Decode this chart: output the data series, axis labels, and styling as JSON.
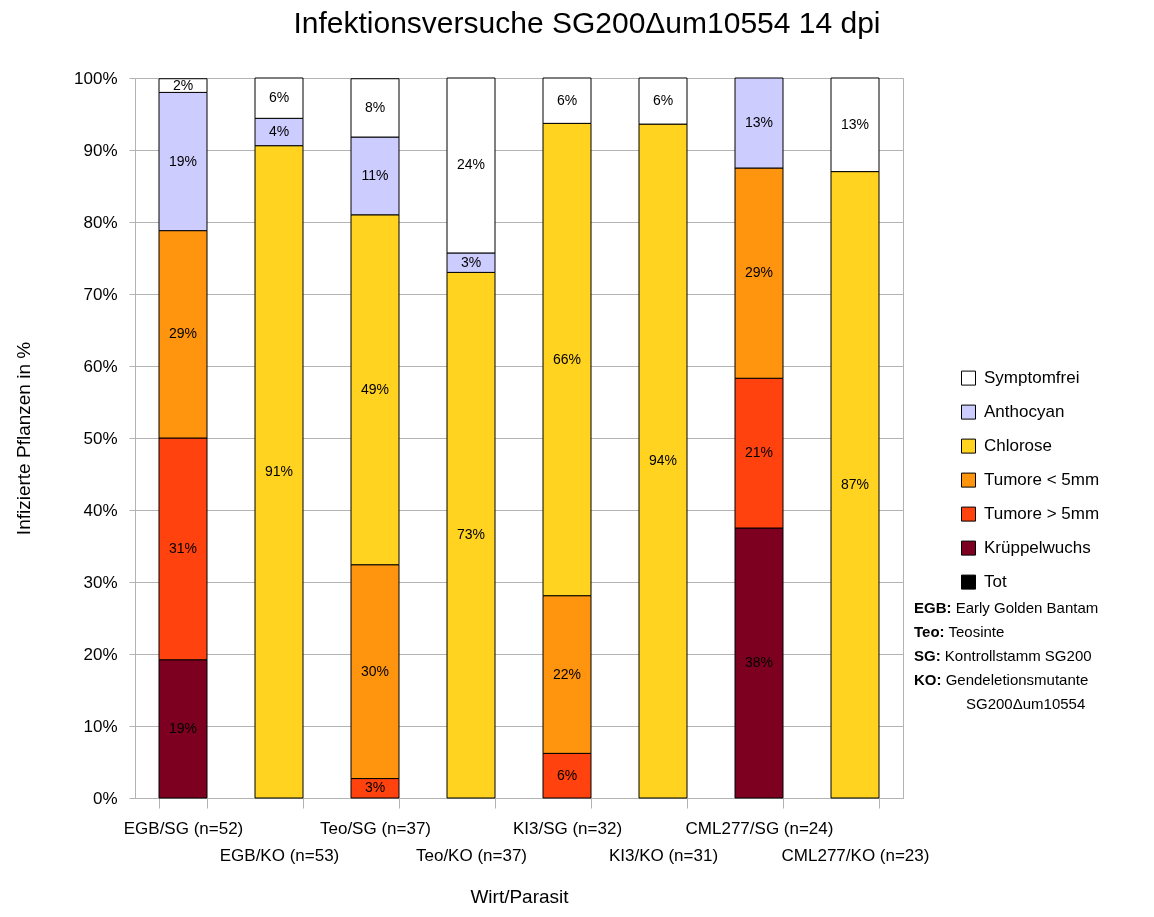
{
  "chart_data": {
    "type": "bar",
    "title": "Infektionsversuche SG200Δum10554 14 dpi",
    "xlabel": "Wirt/Parasit",
    "ylabel": "Infizierte Pflanzen in %",
    "categories": [
      "EGB/SG (n=52)",
      "EGB/KO (n=53)",
      "Teo/SG (n=37)",
      "Teo/KO (n=37)",
      "KI3/SG (n=32)",
      "KI3/KO (n=31)",
      "CML277/SG (n=24)",
      "CML277/KO (n=23)"
    ],
    "stacked": true,
    "ylim": [
      0,
      100
    ],
    "yticks": [
      {
        "value": 0,
        "label": "0%"
      },
      {
        "value": 10,
        "label": "10%"
      },
      {
        "value": 20,
        "label": "20%"
      },
      {
        "value": 30,
        "label": "30%"
      },
      {
        "value": 40,
        "label": "40%"
      },
      {
        "value": 50,
        "label": "50%"
      },
      {
        "value": 60,
        "label": "60%"
      },
      {
        "value": 70,
        "label": "70%"
      },
      {
        "value": 80,
        "label": "80%"
      },
      {
        "value": 90,
        "label": "90%"
      },
      {
        "value": 100,
        "label": "100%"
      }
    ],
    "grid": "y",
    "legend": "right",
    "series": [
      {
        "name": "Tot",
        "color": "#000000",
        "values": [
          null,
          null,
          null,
          null,
          null,
          null,
          null,
          null
        ]
      },
      {
        "name": "Krüppelwuchs",
        "color": "#7e0021",
        "values": [
          19.2,
          null,
          null,
          null,
          null,
          null,
          37.5,
          null
        ],
        "value_labels": [
          "19%",
          null,
          null,
          null,
          null,
          null,
          "38%",
          null
        ]
      },
      {
        "name": "Tumore > 5mm",
        "color": "#ff420e",
        "values": [
          30.8,
          null,
          2.7,
          null,
          6.2,
          null,
          20.8,
          null
        ],
        "value_labels": [
          "31%",
          null,
          "3%",
          null,
          "6%",
          null,
          "21%",
          null
        ]
      },
      {
        "name": "Tumore < 5mm",
        "color": "#ff950e",
        "values": [
          28.8,
          null,
          29.7,
          null,
          21.9,
          null,
          29.2,
          null
        ],
        "value_labels": [
          "29%",
          null,
          "30%",
          null,
          "22%",
          null,
          "29%",
          null
        ]
      },
      {
        "name": "Chlorose",
        "color": "#ffd320",
        "values": [
          null,
          90.6,
          48.6,
          73.0,
          65.6,
          93.6,
          null,
          87.0
        ],
        "value_labels": [
          null,
          "91%",
          "49%",
          "73%",
          "66%",
          "94%",
          null,
          "87%"
        ]
      },
      {
        "name": "Anthocyan",
        "color": "#ccccff",
        "values": [
          19.2,
          3.8,
          10.8,
          2.7,
          null,
          null,
          12.5,
          null
        ],
        "value_labels": [
          "19%",
          "4%",
          "11%",
          "3%",
          null,
          null,
          "13%",
          null
        ]
      },
      {
        "name": "Symptomfrei",
        "color": "#ffffff",
        "values": [
          1.9,
          5.6,
          8.1,
          24.3,
          6.3,
          6.4,
          null,
          13.0
        ],
        "value_labels": [
          "2%",
          "6%",
          "8%",
          "24%",
          "6%",
          "6%",
          null,
          "13%"
        ]
      }
    ],
    "annotations": [
      "EGB: Early Golden Bantam",
      "Teo: Teosinte",
      "SG: Kontrollstamm SG200",
      "KO: Gendeletionsmutante SG200Δum10554"
    ]
  }
}
